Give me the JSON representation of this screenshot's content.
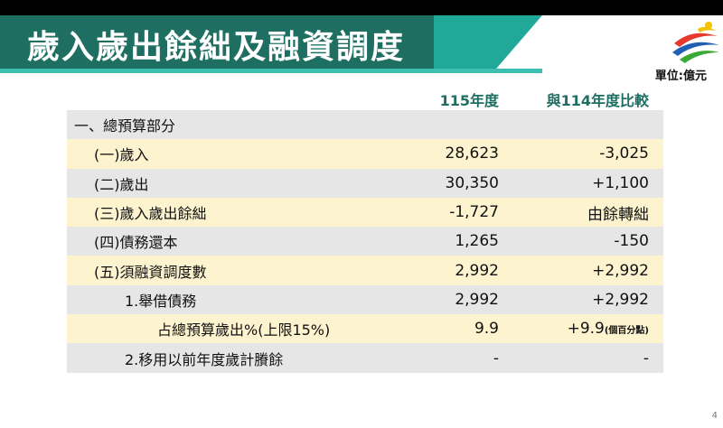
{
  "title": "歲入歲出餘絀及融資調度",
  "unit": "單位:億元",
  "columns": [
    "115年度",
    "與114年度比較"
  ],
  "rows": [
    {
      "label": "一、總預算部分",
      "v1": "",
      "v2": "",
      "indent": 0,
      "bg": "g"
    },
    {
      "label": "(一)歲入",
      "v1": "28,623",
      "v2": "-3,025",
      "indent": 1,
      "bg": "y"
    },
    {
      "label": "(二)歲出",
      "v1": "30,350",
      "v2": "+1,100",
      "indent": 1,
      "bg": "g"
    },
    {
      "label": "(三)歲入歲出餘絀",
      "v1": "-1,727",
      "v2": "由餘轉絀",
      "indent": 1,
      "bg": "y"
    },
    {
      "label": "(四)債務還本",
      "v1": "1,265",
      "v2": "-150",
      "indent": 1,
      "bg": "g"
    },
    {
      "label": "(五)須融資調度數",
      "v1": "2,992",
      "v2": "+2,992",
      "indent": 1,
      "bg": "y"
    },
    {
      "label": "1.舉借債務",
      "v1": "2,992",
      "v2": "+2,992",
      "indent": 2,
      "bg": "g"
    },
    {
      "label": "占總預算歲出%(上限15%)",
      "v1": "9.9",
      "v2": "+9.9",
      "v2_note": "(個百分點)",
      "indent": 3,
      "bg": "y"
    },
    {
      "label": "2.移用以前年度歲計賸餘",
      "v1": "-",
      "v2": "-",
      "indent": 2,
      "bg": "g"
    }
  ],
  "page_number": "4",
  "colors": {
    "banner": "#1e6f62",
    "accent": "#21a898",
    "row_yellow": "#fdf3cf",
    "row_gray": "#e6e6e6"
  },
  "logo_icon": "sports-logo-icon"
}
